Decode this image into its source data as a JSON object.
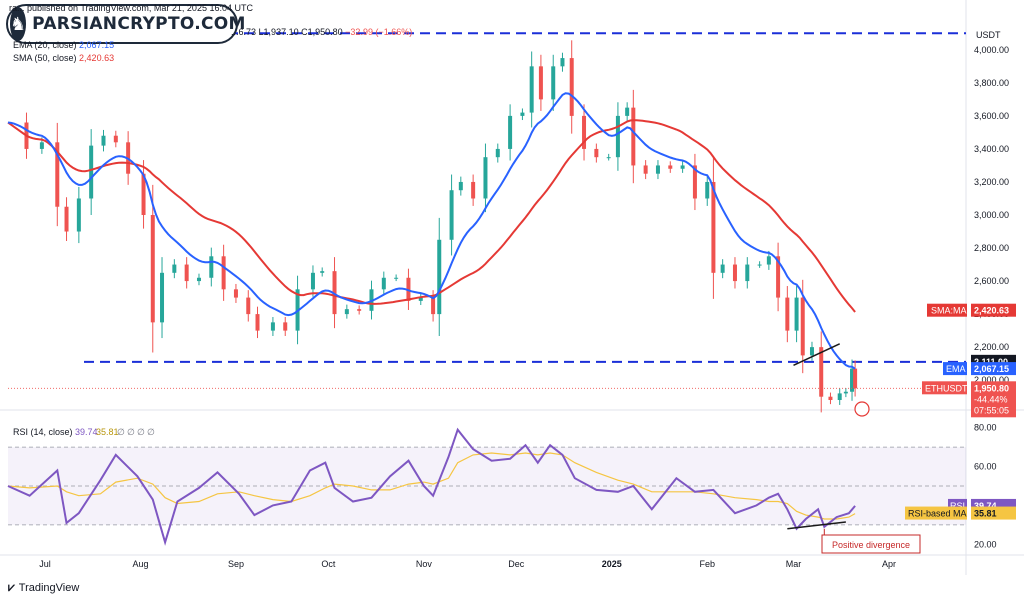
{
  "header": {
    "publisher": "ra... published on TradingView.com, Mar 21, 2025 16:04 UTC",
    "ohlc_partial": "...6.73",
    "low": "L1,937.10",
    "close": "C1,950.80",
    "change": "−32.99 (−1.66%)",
    "ema_label": "EMA (20, close)",
    "ema_value": "2,067.15",
    "sma_label": "SMA (50, close)",
    "sma_value": "2,420.63"
  },
  "logo": {
    "text": "PARSIANCRYPTO.COM"
  },
  "footer": {
    "brand": "TradingView"
  },
  "colors": {
    "candle_up": "#26a69a",
    "candle_down": "#ef5350",
    "ema": "#2962ff",
    "sma": "#e53935",
    "rsi": "#7e57c2",
    "rsi_ma": "#f5c542",
    "level_lines": "#1b2fd8",
    "divergence": "#c62828"
  },
  "chart_data": [
    {
      "type": "candlestick",
      "symbol": "ETHUSDT",
      "x_ticks": [
        "Jul",
        "Aug",
        "Sep",
        "Oct",
        "Nov",
        "Dec",
        "2025",
        "Feb",
        "Mar",
        "Apr"
      ],
      "y_ticks": [
        "4,000.00",
        "3,800.00",
        "3,600.00",
        "3,400.00",
        "3,200.00",
        "3,000.00",
        "2,800.00",
        "2,600.00",
        "2,400.00",
        "2,200.00",
        "2,000.00"
      ],
      "ylim": [
        1880,
        4120
      ],
      "currency": "USDT",
      "close_series": [
        [
          "2024-06-19",
          3560
        ],
        [
          "2024-06-25",
          3400
        ],
        [
          "2024-06-30",
          3440
        ],
        [
          "2024-07-05",
          3050
        ],
        [
          "2024-07-08",
          2900
        ],
        [
          "2024-07-12",
          3100
        ],
        [
          "2024-07-16",
          3420
        ],
        [
          "2024-07-20",
          3480
        ],
        [
          "2024-07-24",
          3440
        ],
        [
          "2024-07-28",
          3250
        ],
        [
          "2024-08-02",
          3000
        ],
        [
          "2024-08-05",
          2350
        ],
        [
          "2024-08-08",
          2650
        ],
        [
          "2024-08-12",
          2700
        ],
        [
          "2024-08-16",
          2600
        ],
        [
          "2024-08-20",
          2620
        ],
        [
          "2024-08-24",
          2750
        ],
        [
          "2024-08-28",
          2550
        ],
        [
          "2024-09-01",
          2500
        ],
        [
          "2024-09-05",
          2400
        ],
        [
          "2024-09-08",
          2300
        ],
        [
          "2024-09-13",
          2350
        ],
        [
          "2024-09-17",
          2300
        ],
        [
          "2024-09-21",
          2550
        ],
        [
          "2024-09-26",
          2650
        ],
        [
          "2024-09-29",
          2660
        ],
        [
          "2024-10-03",
          2400
        ],
        [
          "2024-10-07",
          2430
        ],
        [
          "2024-10-11",
          2420
        ],
        [
          "2024-10-15",
          2550
        ],
        [
          "2024-10-19",
          2620
        ],
        [
          "2024-10-23",
          2620
        ],
        [
          "2024-10-27",
          2480
        ],
        [
          "2024-10-31",
          2500
        ],
        [
          "2024-11-04",
          2400
        ],
        [
          "2024-11-06",
          2850
        ],
        [
          "2024-11-10",
          3150
        ],
        [
          "2024-11-13",
          3200
        ],
        [
          "2024-11-17",
          3100
        ],
        [
          "2024-11-21",
          3350
        ],
        [
          "2024-11-25",
          3400
        ],
        [
          "2024-11-29",
          3600
        ],
        [
          "2024-12-03",
          3620
        ],
        [
          "2024-12-06",
          3900
        ],
        [
          "2024-12-09",
          3700
        ],
        [
          "2024-12-13",
          3900
        ],
        [
          "2024-12-16",
          3950
        ],
        [
          "2024-12-19",
          3600
        ],
        [
          "2024-12-23",
          3400
        ],
        [
          "2024-12-27",
          3350
        ],
        [
          "2024-12-31",
          3350
        ],
        [
          "2025-01-03",
          3600
        ],
        [
          "2025-01-06",
          3650
        ],
        [
          "2025-01-08",
          3300
        ],
        [
          "2025-01-12",
          3250
        ],
        [
          "2025-01-16",
          3300
        ],
        [
          "2025-01-20",
          3280
        ],
        [
          "2025-01-24",
          3300
        ],
        [
          "2025-01-28",
          3100
        ],
        [
          "2025-02-01",
          3200
        ],
        [
          "2025-02-03",
          2650
        ],
        [
          "2025-02-06",
          2700
        ],
        [
          "2025-02-10",
          2600
        ],
        [
          "2025-02-14",
          2700
        ],
        [
          "2025-02-18",
          2700
        ],
        [
          "2025-02-21",
          2750
        ],
        [
          "2025-02-24",
          2500
        ],
        [
          "2025-02-27",
          2300
        ],
        [
          "2025-03-02",
          2500
        ],
        [
          "2025-03-04",
          2150
        ],
        [
          "2025-03-07",
          2200
        ],
        [
          "2025-03-10",
          1900
        ],
        [
          "2025-03-13",
          1880
        ],
        [
          "2025-03-16",
          1920
        ],
        [
          "2025-03-18",
          1930
        ],
        [
          "2025-03-20",
          2070
        ],
        [
          "2025-03-21",
          1950.8
        ]
      ],
      "series": [
        {
          "name": "EMA (20, close)",
          "last": 2067.15
        },
        {
          "name": "SMA (50, close)",
          "last": 2420.63
        }
      ],
      "levels": [
        {
          "value": 4100
        },
        {
          "value": 2111.0
        }
      ],
      "price_labels": {
        "currency": "USDT",
        "level_2111": "2,111.00",
        "ema_tag": "EMA",
        "ema_value": "2,067.15",
        "sma_tag": "SMA:MA",
        "sma_value": "2,420.63",
        "symbol_tag": "ETHUSDT",
        "price": "1,950.80",
        "pct": "-44.44%",
        "countdown": "07:55:05"
      }
    },
    {
      "type": "line",
      "title": "RSI (14, close)",
      "header_values": [
        "39.74",
        "35.81",
        "∅",
        "∅",
        "∅",
        "∅"
      ],
      "y_ticks": [
        "80.00",
        "60.00",
        "40.00",
        "20.00"
      ],
      "ylim": [
        15,
        85
      ],
      "bands": [
        30,
        50,
        70
      ],
      "x": [
        "2024-06-19",
        "2024-06-26",
        "2024-07-05",
        "2024-07-08",
        "2024-07-12",
        "2024-07-19",
        "2024-07-24",
        "2024-07-31",
        "2024-08-05",
        "2024-08-09",
        "2024-08-13",
        "2024-08-20",
        "2024-08-26",
        "2024-09-02",
        "2024-09-07",
        "2024-09-13",
        "2024-09-19",
        "2024-09-25",
        "2024-09-30",
        "2024-10-03",
        "2024-10-09",
        "2024-10-15",
        "2024-10-21",
        "2024-10-27",
        "2024-11-01",
        "2024-11-04",
        "2024-11-09",
        "2024-11-12",
        "2024-11-17",
        "2024-11-23",
        "2024-11-29",
        "2024-12-04",
        "2024-12-08",
        "2024-12-12",
        "2024-12-16",
        "2024-12-20",
        "2024-12-27",
        "2025-01-03",
        "2025-01-08",
        "2025-01-14",
        "2025-01-22",
        "2025-01-28",
        "2025-02-03",
        "2025-02-10",
        "2025-02-17",
        "2025-02-21",
        "2025-02-24",
        "2025-02-27",
        "2025-03-02",
        "2025-03-05",
        "2025-03-09",
        "2025-03-11",
        "2025-03-15",
        "2025-03-19",
        "2025-03-21"
      ],
      "series": [
        {
          "name": "RSI",
          "last": "39.74",
          "values": [
            50,
            45,
            58,
            31,
            36,
            53,
            66,
            55,
            43,
            21,
            42,
            49,
            57,
            46,
            35,
            40,
            42,
            58,
            62,
            49,
            42,
            44,
            55,
            63,
            50,
            45,
            65,
            79,
            69,
            63,
            64,
            71,
            62,
            71,
            66,
            54,
            48,
            47,
            50,
            38,
            54,
            47,
            48,
            36,
            40,
            44,
            46,
            38,
            28,
            33,
            38,
            29,
            34,
            36,
            39.74
          ]
        },
        {
          "name": "RSI-based MA",
          "last": "35.81",
          "values": [
            50,
            49,
            50,
            47,
            45,
            46,
            52,
            54,
            51,
            44,
            41,
            42,
            46,
            47,
            45,
            43,
            42,
            45,
            49,
            51,
            50,
            48,
            48,
            51,
            52,
            51,
            54,
            62,
            66,
            67,
            66,
            67,
            66,
            67,
            66,
            62,
            57,
            53,
            51,
            47,
            47,
            47,
            46,
            44,
            43,
            42,
            42,
            41,
            37,
            35,
            34,
            33,
            33,
            34,
            35.81
          ]
        }
      ],
      "annotation": "Positive divergence",
      "divergence_price_line": [
        [
          "2025-03-01",
          2090
        ],
        [
          "2025-03-16",
          2220
        ]
      ],
      "divergence_rsi_line": [
        [
          "2025-02-27",
          28
        ],
        [
          "2025-03-18",
          31.5
        ]
      ]
    }
  ]
}
